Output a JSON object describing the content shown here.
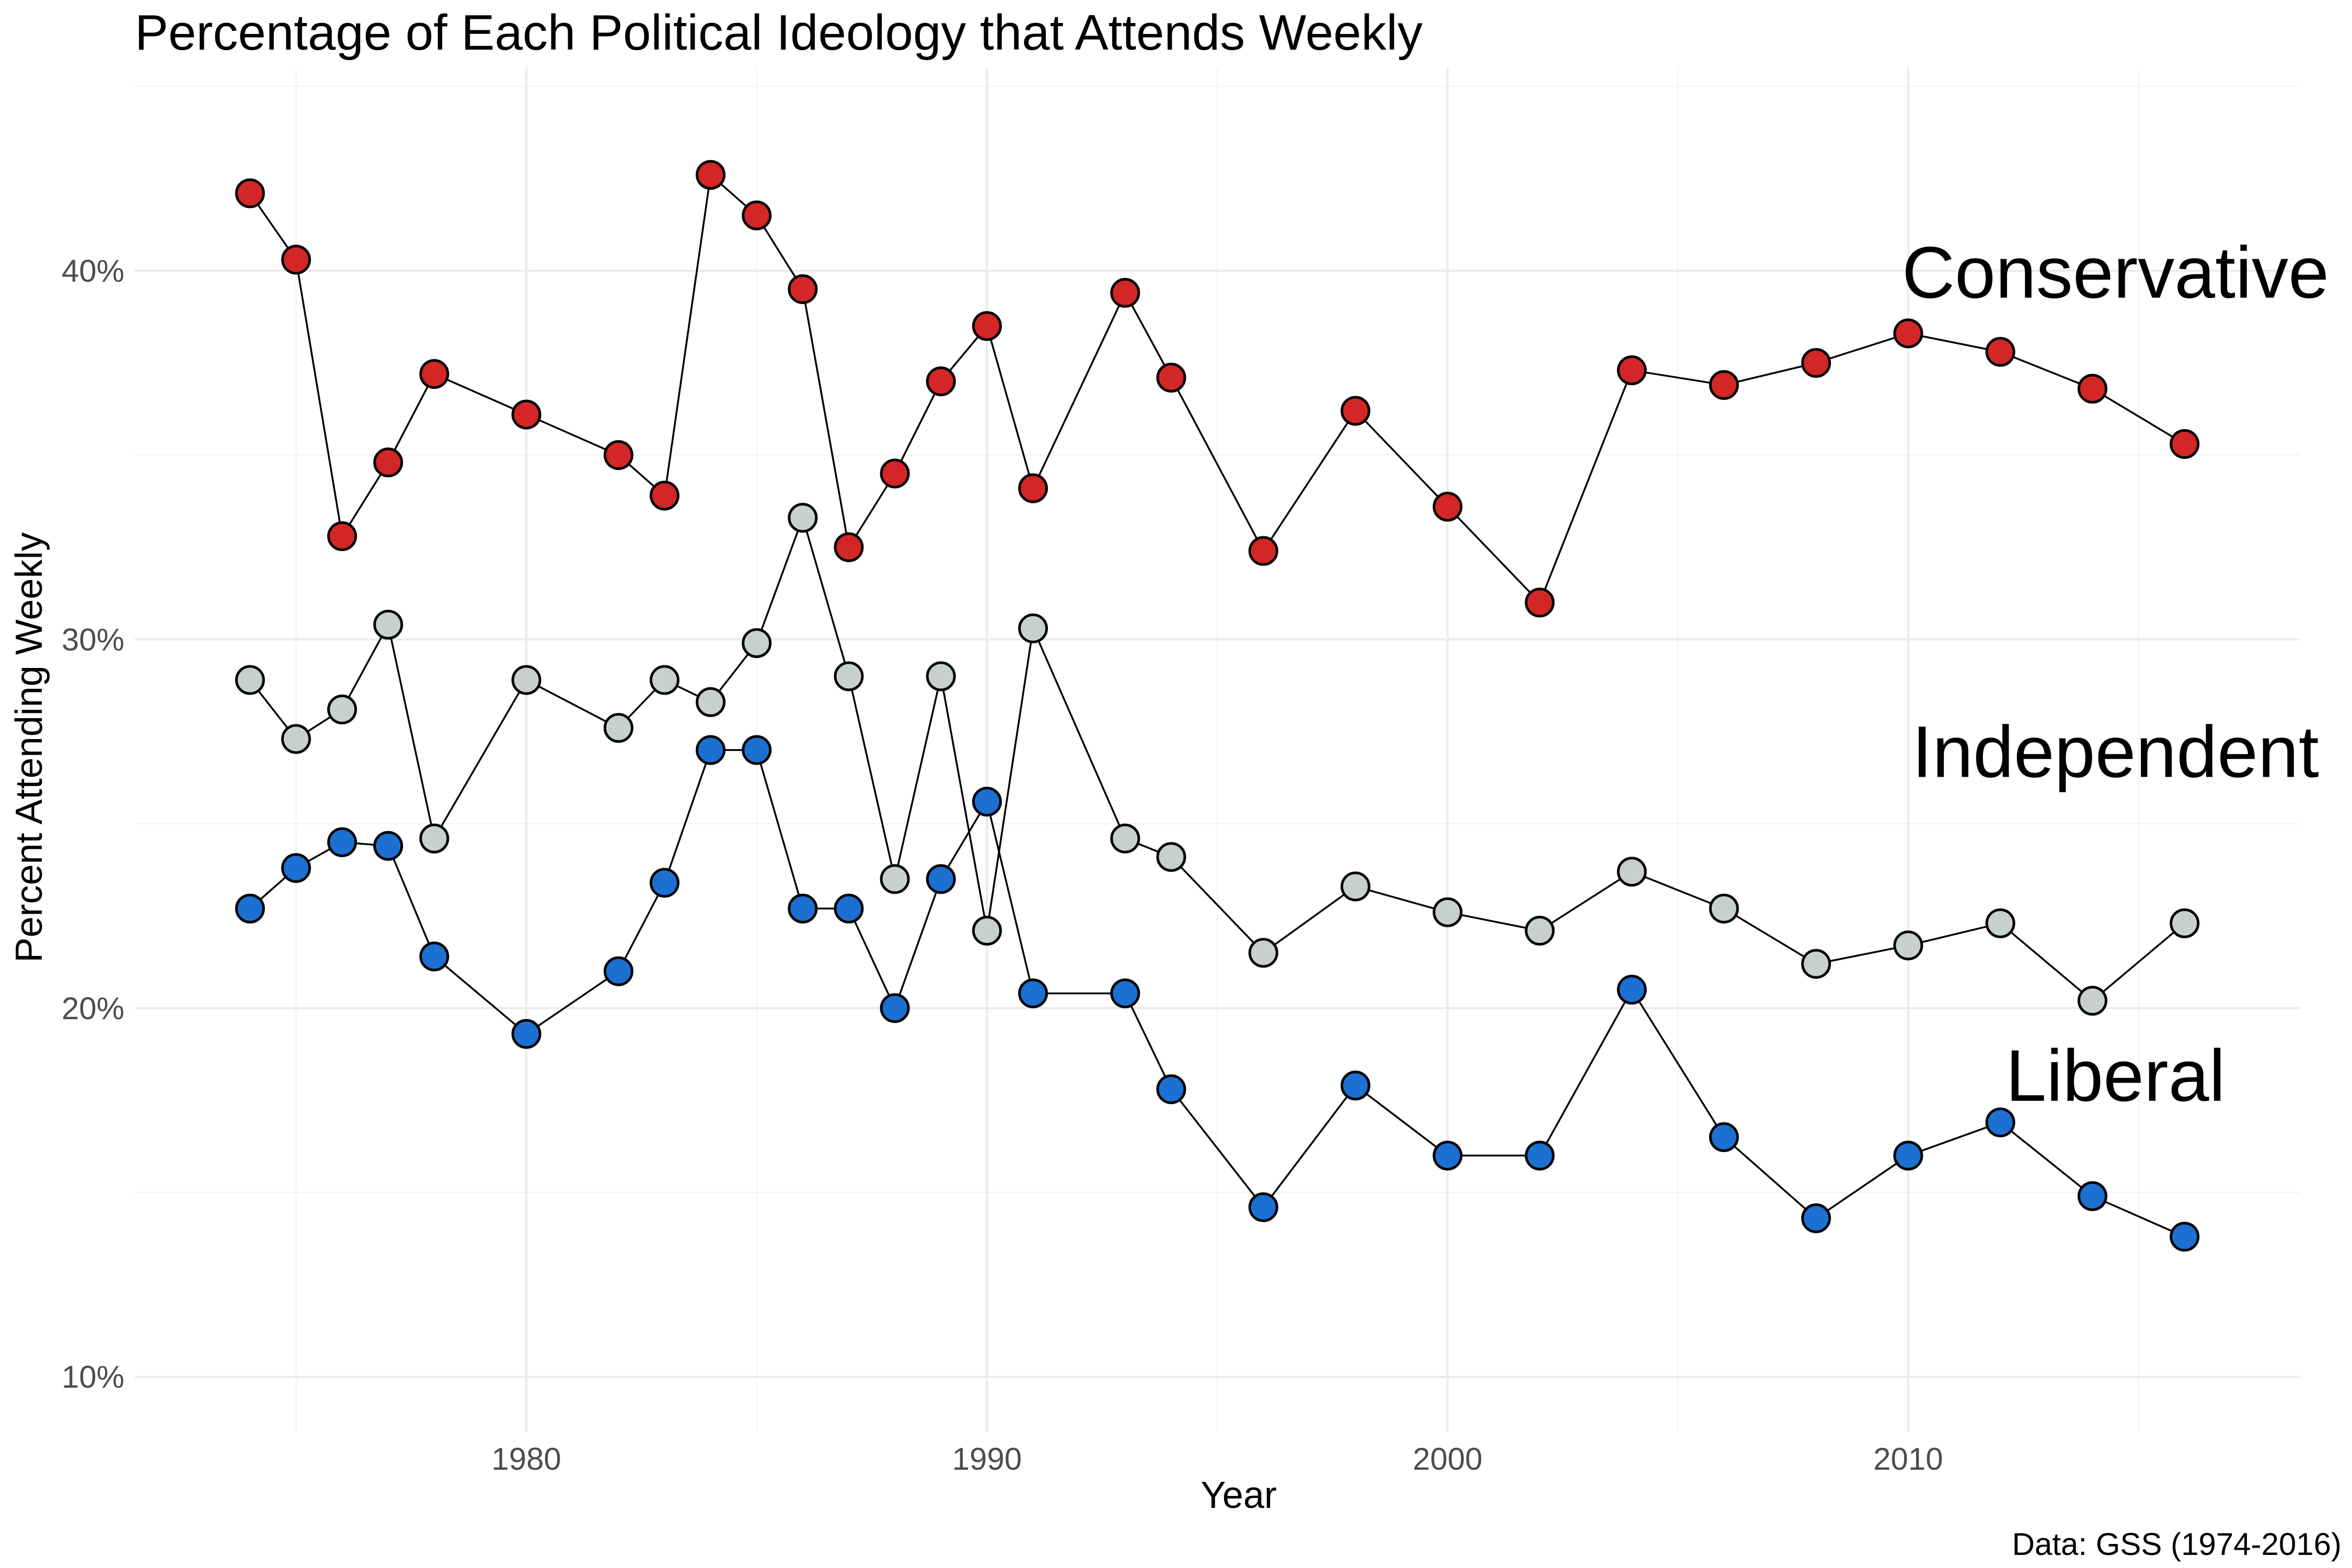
{
  "chart_data": {
    "type": "line",
    "title": "Percentage of Each Political Ideology that Attends Weekly",
    "xlabel": "Year",
    "ylabel": "Percent Attending Weekly",
    "caption": "Data: GSS (1974-2016)",
    "xlim": [
      1971.5,
      2018.5
    ],
    "ylim": [
      8.5,
      45.5
    ],
    "x_ticks": [
      1980,
      1990,
      2000,
      2010
    ],
    "x_tick_labels": [
      "1980",
      "1990",
      "2000",
      "2010"
    ],
    "y_ticks": [
      10,
      20,
      30,
      40
    ],
    "y_tick_labels": [
      "10%",
      "20%",
      "30%",
      "40%"
    ],
    "grid": true,
    "legend": "none",
    "series": [
      {
        "name": "Conservative",
        "color": "#d32626",
        "points": [
          [
            1974,
            42.1
          ],
          [
            1975,
            40.3
          ],
          [
            1976,
            32.8
          ],
          [
            1977,
            34.8
          ],
          [
            1978,
            37.2
          ],
          [
            1980,
            36.1
          ],
          [
            1982,
            35.0
          ],
          [
            1983,
            33.9
          ],
          [
            1984,
            42.6
          ],
          [
            1985,
            41.5
          ],
          [
            1986,
            39.5
          ],
          [
            1987,
            32.5
          ],
          [
            1988,
            34.5
          ],
          [
            1989,
            37.0
          ],
          [
            1990,
            38.5
          ],
          [
            1991,
            34.1
          ],
          [
            1993,
            39.4
          ],
          [
            1994,
            37.1
          ],
          [
            1996,
            32.4
          ],
          [
            1998,
            36.2
          ],
          [
            2000,
            33.6
          ],
          [
            2002,
            31.0
          ],
          [
            2004,
            37.3
          ],
          [
            2006,
            36.9
          ],
          [
            2008,
            37.5
          ],
          [
            2010,
            38.3
          ],
          [
            2012,
            37.8
          ],
          [
            2014,
            36.8
          ],
          [
            2016,
            35.3
          ]
        ]
      },
      {
        "name": "Independent",
        "color": "#c8d0cd",
        "points": [
          [
            1974,
            28.9
          ],
          [
            1975,
            27.3
          ],
          [
            1976,
            28.1
          ],
          [
            1977,
            30.4
          ],
          [
            1978,
            24.6
          ],
          [
            1980,
            28.9
          ],
          [
            1982,
            27.6
          ],
          [
            1983,
            28.9
          ],
          [
            1984,
            28.3
          ],
          [
            1985,
            29.9
          ],
          [
            1986,
            33.3
          ],
          [
            1987,
            29.0
          ],
          [
            1988,
            23.5
          ],
          [
            1989,
            29.0
          ],
          [
            1990,
            22.1
          ],
          [
            1991,
            30.3
          ],
          [
            1993,
            24.6
          ],
          [
            1994,
            24.1
          ],
          [
            1996,
            21.5
          ],
          [
            1998,
            23.3
          ],
          [
            2000,
            22.6
          ],
          [
            2002,
            22.1
          ],
          [
            2004,
            23.7
          ],
          [
            2006,
            22.7
          ],
          [
            2008,
            21.2
          ],
          [
            2010,
            21.7
          ],
          [
            2012,
            22.3
          ],
          [
            2014,
            20.2
          ],
          [
            2016,
            22.3
          ]
        ]
      },
      {
        "name": "Liberal",
        "color": "#1b70d2",
        "points": [
          [
            1974,
            22.7
          ],
          [
            1975,
            23.8
          ],
          [
            1976,
            24.5
          ],
          [
            1977,
            24.4
          ],
          [
            1978,
            21.4
          ],
          [
            1980,
            19.3
          ],
          [
            1982,
            21.0
          ],
          [
            1983,
            23.4
          ],
          [
            1984,
            27.0
          ],
          [
            1985,
            27.0
          ],
          [
            1986,
            22.7
          ],
          [
            1987,
            22.7
          ],
          [
            1988,
            20.0
          ],
          [
            1989,
            23.5
          ],
          [
            1990,
            25.6
          ],
          [
            1991,
            20.4
          ],
          [
            1993,
            20.4
          ],
          [
            1994,
            17.8
          ],
          [
            1996,
            14.6
          ],
          [
            1998,
            17.9
          ],
          [
            2000,
            16.0
          ],
          [
            2002,
            16.0
          ],
          [
            2004,
            20.5
          ],
          [
            2006,
            16.5
          ],
          [
            2008,
            14.3
          ],
          [
            2010,
            16.0
          ],
          [
            2012,
            16.9
          ],
          [
            2014,
            14.9
          ],
          [
            2016,
            13.8
          ]
        ]
      }
    ]
  }
}
